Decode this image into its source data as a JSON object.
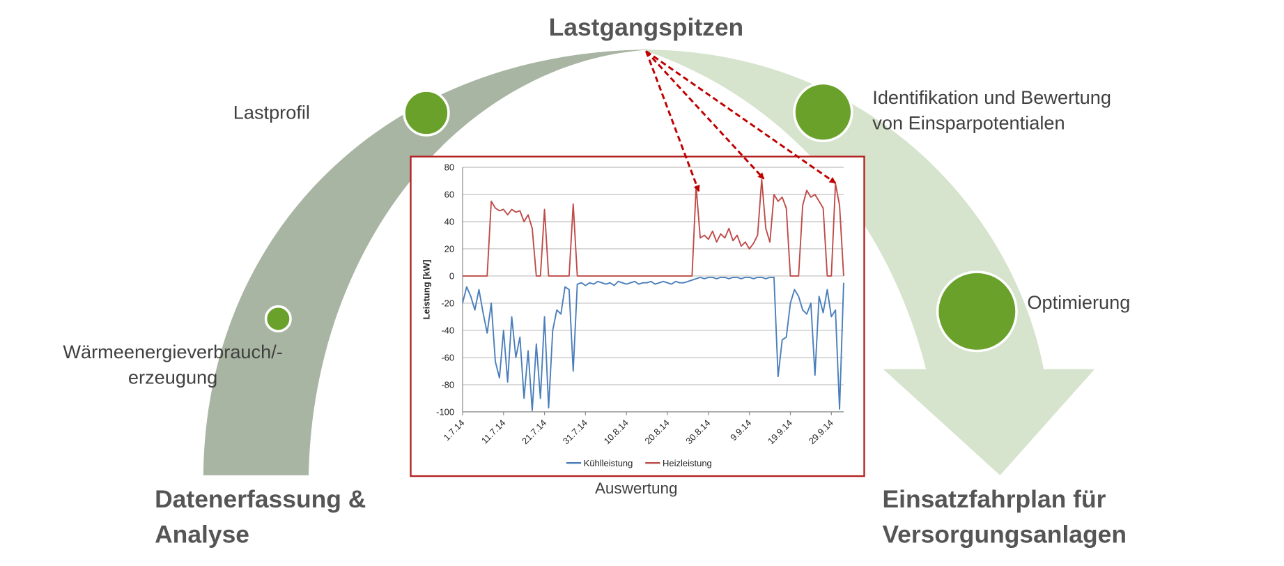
{
  "title": "Lastgangspitzen",
  "stages": {
    "start": [
      "Datenerfassung &",
      "Analyse"
    ],
    "end": [
      "Einsatzfahrplan für",
      "Versorgungsanlagen"
    ]
  },
  "steps": [
    {
      "label": [
        "Wärmeenergieverbrauch/-",
        "erzeugung"
      ]
    },
    {
      "label": [
        "Lastprofil"
      ]
    },
    {
      "label": [
        "Identifikation und Bewertung",
        "von Einsparpotentialen"
      ]
    },
    {
      "label": [
        "Optimierung"
      ]
    }
  ],
  "chart_caption": "Auswertung",
  "chart_data": {
    "type": "line",
    "y_label": "Leistung [kW]",
    "categories": [
      "1.7.14",
      null,
      null,
      null,
      null,
      null,
      null,
      null,
      null,
      null,
      "11.7.14",
      null,
      null,
      null,
      null,
      null,
      null,
      null,
      null,
      null,
      "21.7.14",
      null,
      null,
      null,
      null,
      null,
      null,
      null,
      null,
      null,
      "31.7.14",
      null,
      null,
      null,
      null,
      null,
      null,
      null,
      null,
      null,
      "10.8.14",
      null,
      null,
      null,
      null,
      null,
      null,
      null,
      null,
      null,
      "20.8.14",
      null,
      null,
      null,
      null,
      null,
      null,
      null,
      null,
      null,
      "30.8.14",
      null,
      null,
      null,
      null,
      null,
      null,
      null,
      null,
      null,
      "9.9.14",
      null,
      null,
      null,
      null,
      null,
      null,
      null,
      null,
      null,
      "19.9.14",
      null,
      null,
      null,
      null,
      null,
      null,
      null,
      null,
      null,
      "29.9.14",
      null,
      null,
      null
    ],
    "series": [
      {
        "name": "Kühlleistung",
        "color": "#4a7ebb",
        "values": [
          -20,
          -8,
          -15,
          -25,
          -10,
          -27,
          -42,
          -20,
          -63,
          -75,
          -40,
          -78,
          -30,
          -60,
          -45,
          -90,
          -55,
          -99,
          -50,
          -90,
          -30,
          -97,
          -40,
          -25,
          -28,
          -8,
          -10,
          -70,
          -6,
          -5,
          -7,
          -5,
          -6,
          -4,
          -5,
          -6,
          -5,
          -7,
          -4,
          -5,
          -6,
          -5,
          -4,
          -6,
          -5,
          -5,
          -4,
          -6,
          -5,
          -4,
          -5,
          -6,
          -4,
          -5,
          -5,
          -4,
          -3,
          -2,
          -1,
          -2,
          -1,
          -1,
          -2,
          -1,
          -1,
          -2,
          -1,
          -1,
          -2,
          -1,
          -1,
          -2,
          -1,
          -1,
          -2,
          -1,
          -1,
          -74,
          -47,
          -45,
          -20,
          -10,
          -15,
          -25,
          -28,
          -20,
          -73,
          -15,
          -27,
          -10,
          -30,
          -25,
          -98,
          -5
        ]
      },
      {
        "name": "Heizleistung",
        "color": "#be4b48",
        "values": [
          0,
          0,
          0,
          0,
          0,
          0,
          0,
          55,
          50,
          48,
          49,
          45,
          49,
          47,
          48,
          40,
          45,
          35,
          0,
          0,
          49,
          0,
          0,
          0,
          0,
          0,
          0,
          53,
          0,
          0,
          0,
          0,
          0,
          0,
          0,
          0,
          0,
          0,
          0,
          0,
          0,
          0,
          0,
          0,
          0,
          0,
          0,
          0,
          0,
          0,
          0,
          0,
          0,
          0,
          0,
          0,
          0,
          66,
          28,
          30,
          27,
          33,
          25,
          31,
          28,
          35,
          26,
          30,
          22,
          25,
          20,
          24,
          30,
          71,
          35,
          25,
          60,
          55,
          58,
          50,
          0,
          0,
          0,
          52,
          63,
          58,
          60,
          55,
          50,
          0,
          0,
          68,
          52,
          0
        ]
      }
    ],
    "ylim": [
      -100,
      80
    ],
    "yticks": [
      -100,
      -80,
      -60,
      -40,
      -20,
      0,
      20,
      40,
      60,
      80
    ],
    "grid": true,
    "legend": "bottom"
  }
}
